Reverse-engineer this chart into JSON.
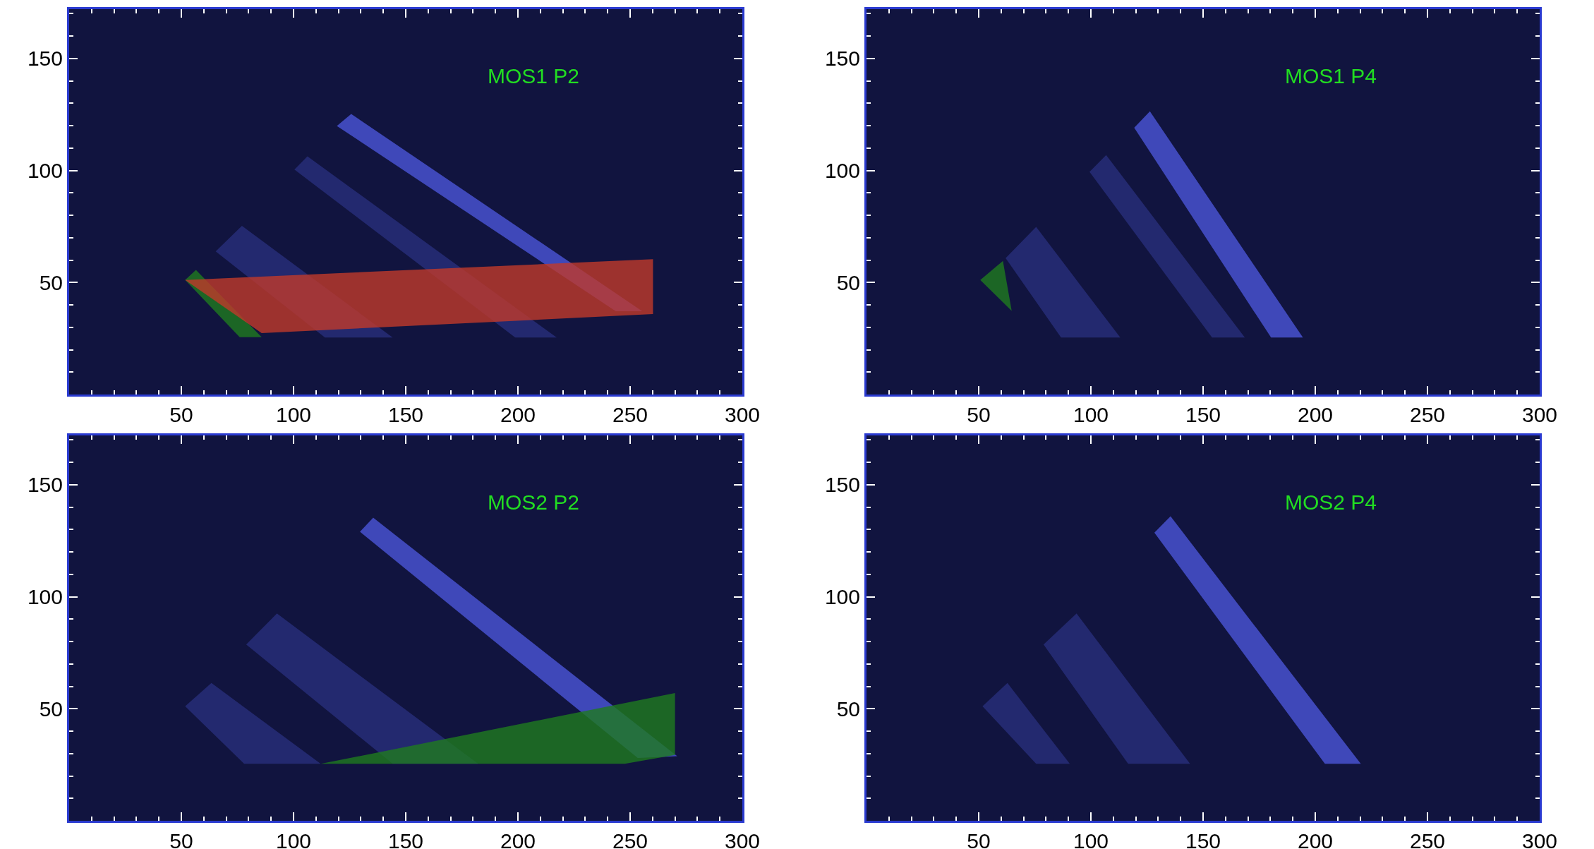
{
  "chart_data": [
    {
      "type": "area",
      "annotations": [
        "MOS1 P2"
      ],
      "xlim": [
        0,
        300
      ],
      "ylim": [
        0,
        172
      ],
      "xticks": [
        50,
        100,
        150,
        200,
        250,
        300
      ],
      "yticks": [
        50,
        100,
        150
      ],
      "series": [
        {
          "color": "#282e7c",
          "x": [
            65.3,
            77,
            144.2,
            114,
            65.3
          ],
          "values": [
            63.9,
            75.3,
            25.4,
            25.4,
            63.9
          ]
        },
        {
          "color": "#282e7c",
          "x": [
            100.4,
            106.2,
            217.3,
            198.8,
            100.4
          ],
          "values": [
            100.4,
            106.3,
            25.4,
            25.4,
            100.4
          ]
        },
        {
          "color": "#4b55d8",
          "x": [
            119.3,
            125.7,
            255.4,
            243.6,
            119.3
          ],
          "values": [
            119.9,
            125.2,
            37.2,
            37.2,
            119.9
          ]
        },
        {
          "color": "#1f7a1f",
          "x": [
            51.7,
            56.5,
            85.8,
            76,
            51.7
          ],
          "values": [
            51.1,
            55.6,
            25.6,
            25.6,
            51.1
          ]
        },
        {
          "color": "#c0392b",
          "x": [
            51.7,
            260.2,
            260.2,
            85.8,
            51.7
          ],
          "values": [
            51.1,
            60.4,
            35.9,
            27.4,
            51.1
          ]
        }
      ]
    },
    {
      "type": "area",
      "annotations": [
        "MOS1 P4"
      ],
      "xlim": [
        0,
        300
      ],
      "ylim": [
        0,
        172
      ],
      "xticks": [
        50,
        100,
        150,
        200,
        250,
        300
      ],
      "yticks": [
        50,
        100,
        150
      ],
      "series": [
        {
          "color": "#282e7c",
          "x": [
            62,
            75.6,
            113.1,
            86.7,
            62
          ],
          "values": [
            60.9,
            74.8,
            25.4,
            25.4,
            60.9
          ]
        },
        {
          "color": "#282e7c",
          "x": [
            99.4,
            106.8,
            168.6,
            154,
            99.4
          ],
          "values": [
            99.4,
            106.9,
            25.4,
            25.4,
            99.4
          ]
        },
        {
          "color": "#4b55d8",
          "x": [
            119.3,
            126.3,
            194.5,
            180.3,
            119.3
          ],
          "values": [
            119.1,
            126.4,
            25.4,
            25.4,
            119.1
          ]
        },
        {
          "color": "#1f7a1f",
          "x": [
            50.7,
            60.8,
            64.7,
            50.7
          ],
          "values": [
            51.1,
            59.6,
            37.3,
            51.1
          ]
        }
      ]
    },
    {
      "type": "area",
      "annotations": [
        "MOS2 P2"
      ],
      "xlim": [
        0,
        300
      ],
      "ylim": [
        0,
        172
      ],
      "xticks": [
        50,
        100,
        150,
        200,
        250,
        300
      ],
      "yticks": [
        50,
        100,
        150
      ],
      "series": [
        {
          "color": "#282e7c",
          "x": [
            51.7,
            63.4,
            112.1,
            78,
            51.7
          ],
          "values": [
            51.1,
            61.5,
            25.4,
            25.4,
            51.1
          ]
        },
        {
          "color": "#282e7c",
          "x": [
            78.9,
            92.6,
            182.3,
            144.2,
            78.9
          ],
          "values": [
            78.7,
            92.5,
            25.4,
            25.4,
            78.7
          ]
        },
        {
          "color": "#4b55d8",
          "x": [
            129.6,
            135.5,
            271,
            253.4,
            129.6
          ],
          "values": [
            129,
            135.3,
            28.8,
            28,
            129
          ]
        },
        {
          "color": "#1f7a1f",
          "x": [
            112.1,
            270,
            270,
            247.6,
            112.1
          ],
          "values": [
            25.4,
            57,
            29.4,
            25.4,
            25.4
          ]
        }
      ]
    },
    {
      "type": "area",
      "annotations": [
        "MOS2 P4"
      ],
      "xlim": [
        0,
        300
      ],
      "ylim": [
        0,
        172
      ],
      "xticks": [
        50,
        100,
        150,
        200,
        250,
        300
      ],
      "yticks": [
        50,
        100,
        150
      ],
      "series": [
        {
          "color": "#282e7c",
          "x": [
            51.7,
            62.8,
            90.6,
            75.6,
            51.7
          ],
          "values": [
            51.1,
            61.5,
            25.4,
            25.4,
            51.1
          ]
        },
        {
          "color": "#282e7c",
          "x": [
            78.9,
            93.6,
            144.2,
            116.6,
            78.9
          ],
          "values": [
            78.7,
            92.5,
            25.4,
            25.4,
            78.7
          ]
        },
        {
          "color": "#4b55d8",
          "x": [
            128.3,
            135.5,
            220.3,
            204.3,
            128.3
          ],
          "values": [
            128.6,
            135.9,
            25.4,
            25.4,
            128.6
          ]
        }
      ]
    }
  ]
}
